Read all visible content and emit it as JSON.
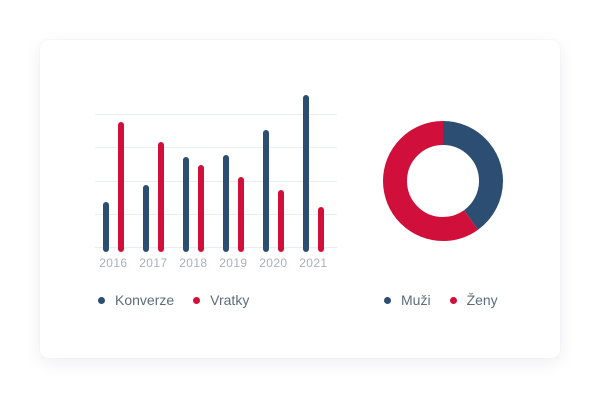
{
  "colors": {
    "blue": "#2b4e72",
    "red": "#d0103a",
    "grid": "#e9eef4",
    "axis_label": "#a9b1bc",
    "legend_text": "#5d6c7b",
    "card_bg": "#ffffff"
  },
  "chart_data": [
    {
      "type": "bar",
      "title": "",
      "categories": [
        "2016",
        "2017",
        "2018",
        "2019",
        "2020",
        "2021"
      ],
      "series": [
        {
          "name": "Konverze",
          "color": "#2b4e72",
          "values": [
            1.5,
            2.0,
            2.85,
            2.9,
            3.65,
            4.7
          ]
        },
        {
          "name": "Vratky",
          "color": "#d0103a",
          "values": [
            3.9,
            3.3,
            2.6,
            2.25,
            1.85,
            1.35
          ]
        }
      ],
      "xlabel": "",
      "ylabel": "",
      "ylim": [
        0,
        5
      ],
      "grid": "5 horizontal unlabeled gridlines",
      "legend_position": "bottom"
    },
    {
      "type": "pie",
      "donut": true,
      "title": "",
      "labels": [
        "Muži",
        "Ženy"
      ],
      "values": [
        40,
        60
      ],
      "colors": [
        "#2b4e72",
        "#d0103a"
      ],
      "start_angle": "12 o'clock, clockwise",
      "legend_position": "bottom"
    }
  ]
}
